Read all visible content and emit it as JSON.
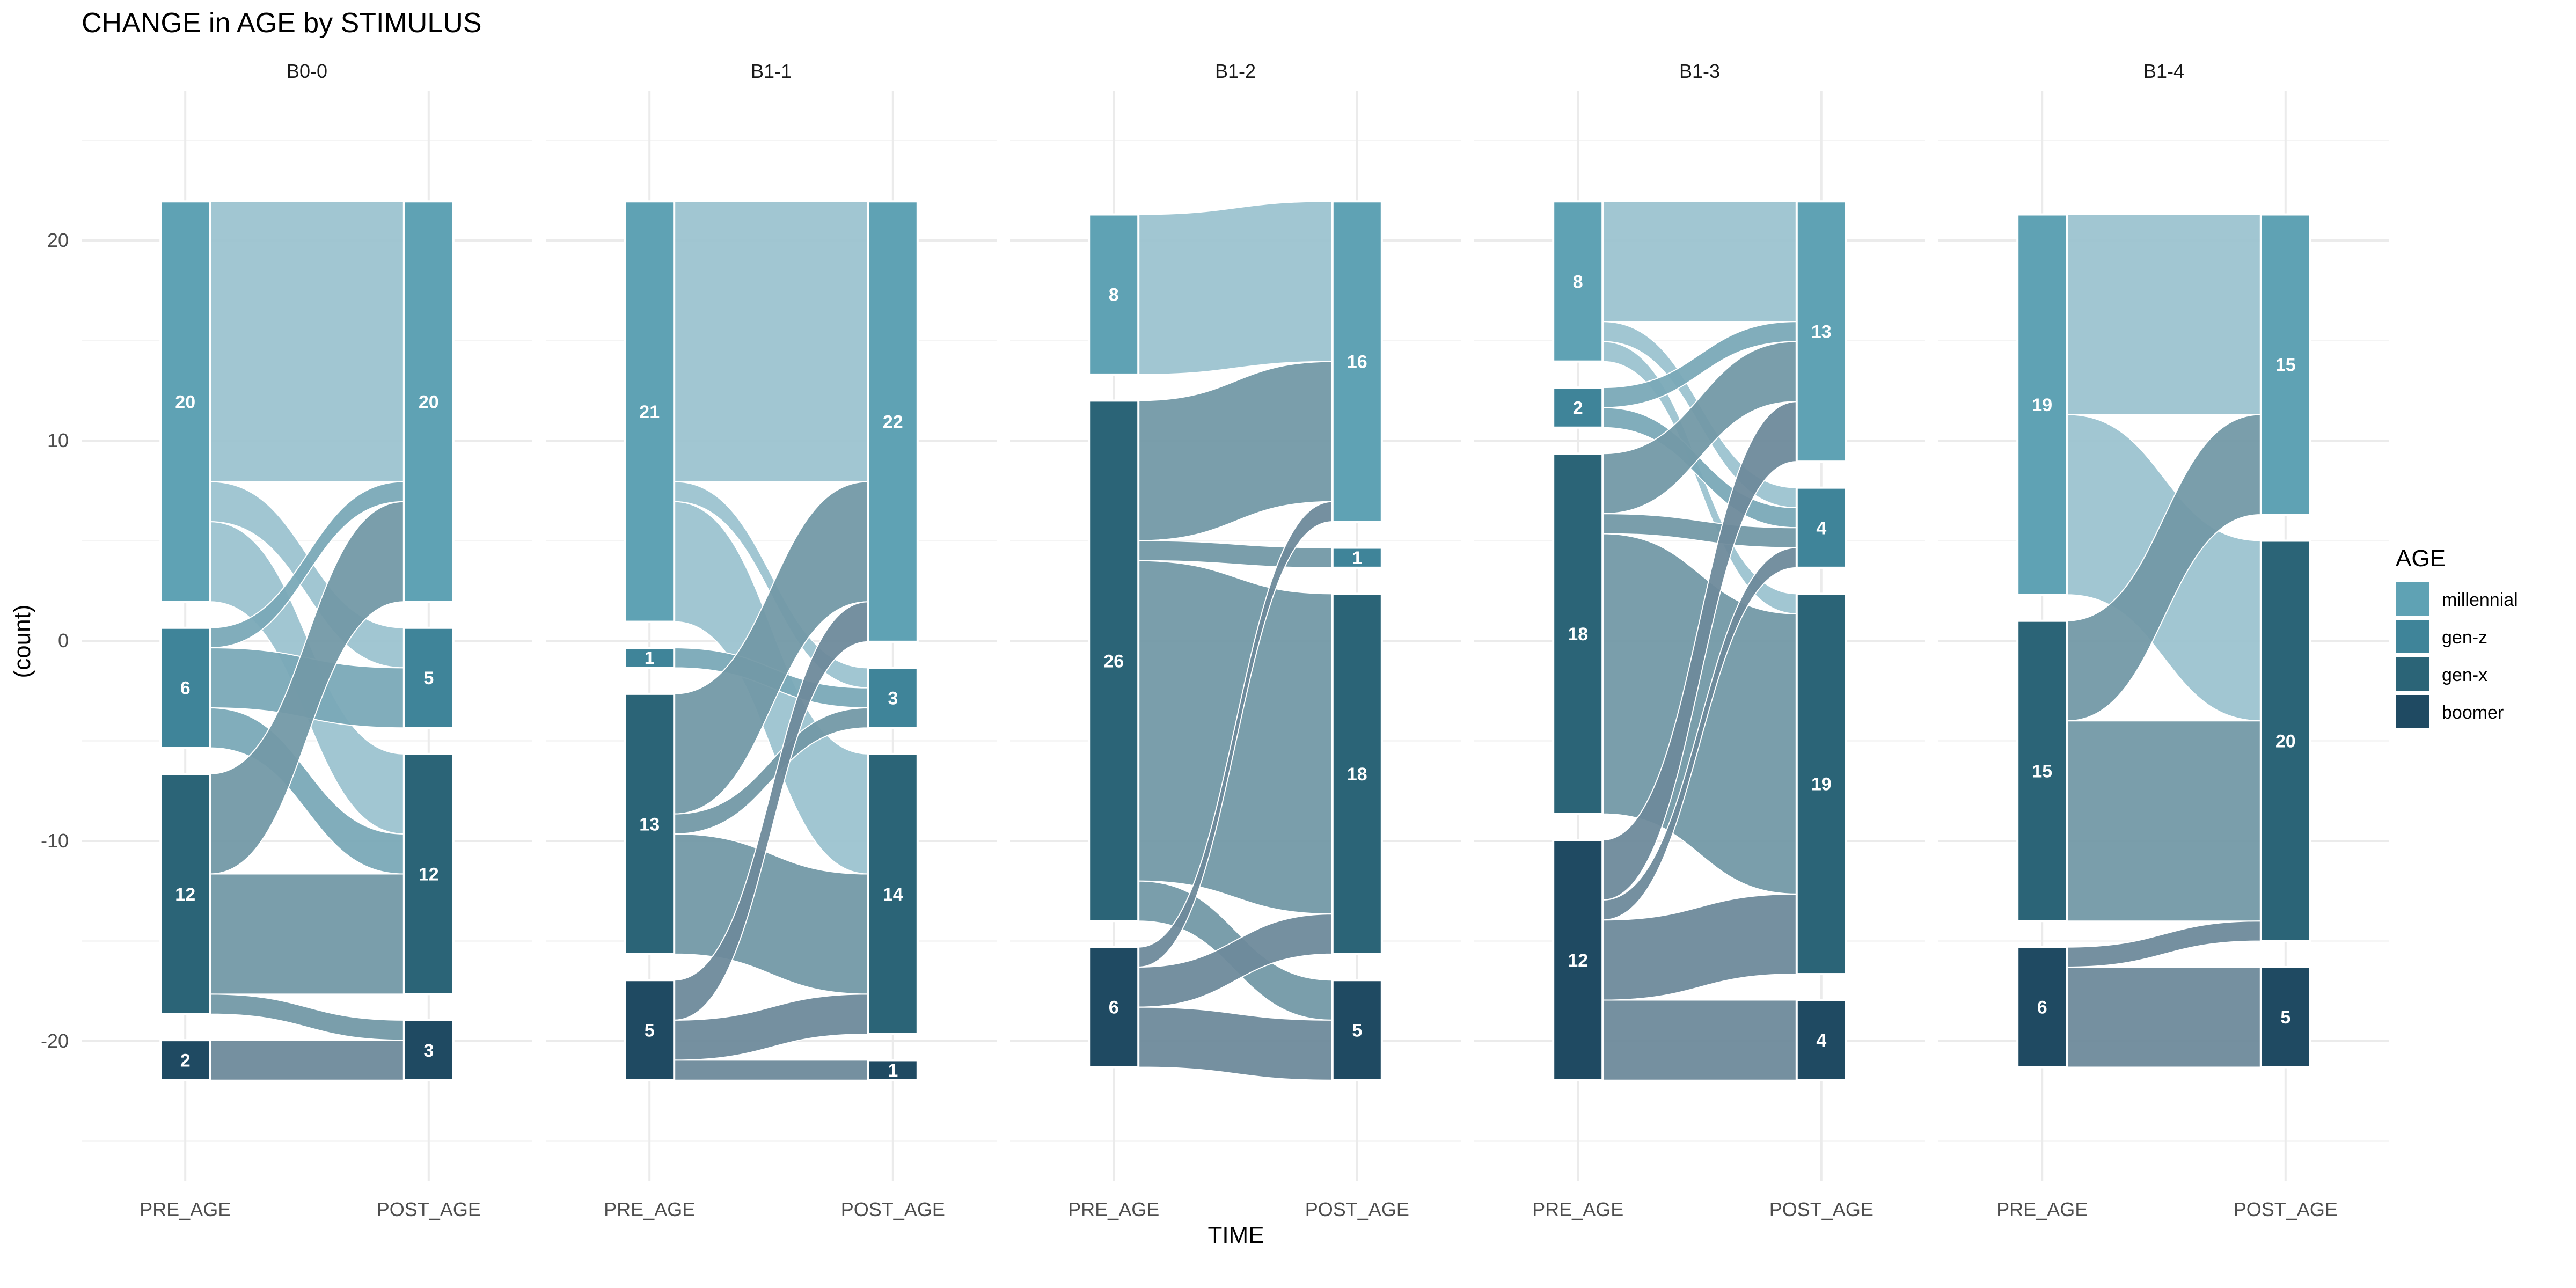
{
  "chart_data": {
    "type": "alluvial",
    "title": "CHANGE in AGE by STIMULUS",
    "xlabel": "TIME",
    "ylabel": "(count)",
    "axes": [
      "PRE_AGE",
      "POST_AGE"
    ],
    "ylim": [
      -26,
      26
    ],
    "yticks": [
      -20,
      -10,
      0,
      10,
      20
    ],
    "grid": true,
    "legend": {
      "title": "AGE",
      "position": "right",
      "items": [
        {
          "label": "millennial",
          "color": "#5fa2b4"
        },
        {
          "label": "gen-z",
          "color": "#3f8499"
        },
        {
          "label": "gen-x",
          "color": "#2b6477"
        },
        {
          "label": "boomer",
          "color": "#1f4a62"
        }
      ]
    },
    "colors": {
      "millennial": "#5fa2b4",
      "gen-z": "#3f8499",
      "gen-x": "#2b6477",
      "boomer": "#1f4a62",
      "flow": {
        "millennial": "#9cc3d0",
        "gen-z": "#7aa9b7",
        "gen-x": "#7399a7",
        "boomer": "#6e8a9b"
      }
    },
    "facets": [
      {
        "name": "B0-0",
        "pre": [
          {
            "cat": "millennial",
            "n": 20
          },
          {
            "cat": "gen-z",
            "n": 6
          },
          {
            "cat": "gen-x",
            "n": 12
          },
          {
            "cat": "boomer",
            "n": 2
          }
        ],
        "post": [
          {
            "cat": "millennial",
            "n": 20
          },
          {
            "cat": "gen-z",
            "n": 5
          },
          {
            "cat": "gen-x",
            "n": 12
          },
          {
            "cat": "boomer",
            "n": 3
          }
        ],
        "flows": [
          {
            "from": "millennial",
            "to": "millennial",
            "n": 14
          },
          {
            "from": "millennial",
            "to": "gen-z",
            "n": 2
          },
          {
            "from": "millennial",
            "to": "gen-x",
            "n": 4
          },
          {
            "from": "gen-z",
            "to": "millennial",
            "n": 1
          },
          {
            "from": "gen-z",
            "to": "gen-z",
            "n": 3
          },
          {
            "from": "gen-z",
            "to": "gen-x",
            "n": 2
          },
          {
            "from": "gen-x",
            "to": "millennial",
            "n": 5
          },
          {
            "from": "gen-x",
            "to": "gen-x",
            "n": 6
          },
          {
            "from": "gen-x",
            "to": "boomer",
            "n": 1
          },
          {
            "from": "boomer",
            "to": "boomer",
            "n": 2
          }
        ]
      },
      {
        "name": "B1-1",
        "pre": [
          {
            "cat": "millennial",
            "n": 21
          },
          {
            "cat": "gen-z",
            "n": 1
          },
          {
            "cat": "gen-x",
            "n": 13
          },
          {
            "cat": "boomer",
            "n": 5
          }
        ],
        "post": [
          {
            "cat": "millennial",
            "n": 22
          },
          {
            "cat": "gen-z",
            "n": 3
          },
          {
            "cat": "gen-x",
            "n": 14
          },
          {
            "cat": "boomer",
            "n": 1
          }
        ],
        "flows": [
          {
            "from": "millennial",
            "to": "millennial",
            "n": 14
          },
          {
            "from": "millennial",
            "to": "gen-z",
            "n": 1
          },
          {
            "from": "millennial",
            "to": "gen-x",
            "n": 6
          },
          {
            "from": "gen-z",
            "to": "gen-z",
            "n": 1
          },
          {
            "from": "gen-x",
            "to": "millennial",
            "n": 6
          },
          {
            "from": "gen-x",
            "to": "gen-z",
            "n": 1
          },
          {
            "from": "gen-x",
            "to": "gen-x",
            "n": 6
          },
          {
            "from": "boomer",
            "to": "millennial",
            "n": 2
          },
          {
            "from": "boomer",
            "to": "gen-x",
            "n": 2
          },
          {
            "from": "boomer",
            "to": "boomer",
            "n": 1
          }
        ]
      },
      {
        "name": "B1-2",
        "pre": [
          {
            "cat": "millennial",
            "n": 8
          },
          {
            "cat": "gen-x",
            "n": 26
          },
          {
            "cat": "boomer",
            "n": 6
          }
        ],
        "post": [
          {
            "cat": "millennial",
            "n": 16
          },
          {
            "cat": "gen-z",
            "n": 1
          },
          {
            "cat": "gen-x",
            "n": 18
          },
          {
            "cat": "boomer",
            "n": 5
          }
        ],
        "flows": [
          {
            "from": "millennial",
            "to": "millennial",
            "n": 8
          },
          {
            "from": "gen-x",
            "to": "millennial",
            "n": 7
          },
          {
            "from": "gen-x",
            "to": "gen-z",
            "n": 1
          },
          {
            "from": "gen-x",
            "to": "gen-x",
            "n": 16
          },
          {
            "from": "gen-x",
            "to": "boomer",
            "n": 2
          },
          {
            "from": "boomer",
            "to": "millennial",
            "n": 1
          },
          {
            "from": "boomer",
            "to": "gen-x",
            "n": 2
          },
          {
            "from": "boomer",
            "to": "boomer",
            "n": 3
          }
        ]
      },
      {
        "name": "B1-3",
        "pre": [
          {
            "cat": "millennial",
            "n": 8
          },
          {
            "cat": "gen-z",
            "n": 2
          },
          {
            "cat": "gen-x",
            "n": 18
          },
          {
            "cat": "boomer",
            "n": 12
          }
        ],
        "post": [
          {
            "cat": "millennial",
            "n": 13
          },
          {
            "cat": "gen-z",
            "n": 4
          },
          {
            "cat": "gen-x",
            "n": 19
          },
          {
            "cat": "boomer",
            "n": 4
          }
        ],
        "flows": [
          {
            "from": "millennial",
            "to": "millennial",
            "n": 6
          },
          {
            "from": "millennial",
            "to": "gen-z",
            "n": 1
          },
          {
            "from": "millennial",
            "to": "gen-x",
            "n": 1
          },
          {
            "from": "gen-z",
            "to": "millennial",
            "n": 1
          },
          {
            "from": "gen-z",
            "to": "gen-z",
            "n": 1
          },
          {
            "from": "gen-x",
            "to": "millennial",
            "n": 3
          },
          {
            "from": "gen-x",
            "to": "gen-z",
            "n": 1
          },
          {
            "from": "gen-x",
            "to": "gen-x",
            "n": 14
          },
          {
            "from": "boomer",
            "to": "millennial",
            "n": 3
          },
          {
            "from": "boomer",
            "to": "gen-z",
            "n": 1
          },
          {
            "from": "boomer",
            "to": "gen-x",
            "n": 4
          },
          {
            "from": "boomer",
            "to": "boomer",
            "n": 4
          }
        ]
      },
      {
        "name": "B1-4",
        "pre": [
          {
            "cat": "millennial",
            "n": 19
          },
          {
            "cat": "gen-x",
            "n": 15
          },
          {
            "cat": "boomer",
            "n": 6
          }
        ],
        "post": [
          {
            "cat": "millennial",
            "n": 15
          },
          {
            "cat": "gen-x",
            "n": 20
          },
          {
            "cat": "boomer",
            "n": 5
          }
        ],
        "flows": [
          {
            "from": "millennial",
            "to": "millennial",
            "n": 10
          },
          {
            "from": "millennial",
            "to": "gen-x",
            "n": 9
          },
          {
            "from": "gen-x",
            "to": "millennial",
            "n": 5
          },
          {
            "from": "gen-x",
            "to": "gen-x",
            "n": 10
          },
          {
            "from": "boomer",
            "to": "gen-x",
            "n": 1
          },
          {
            "from": "boomer",
            "to": "boomer",
            "n": 5
          }
        ]
      }
    ]
  }
}
